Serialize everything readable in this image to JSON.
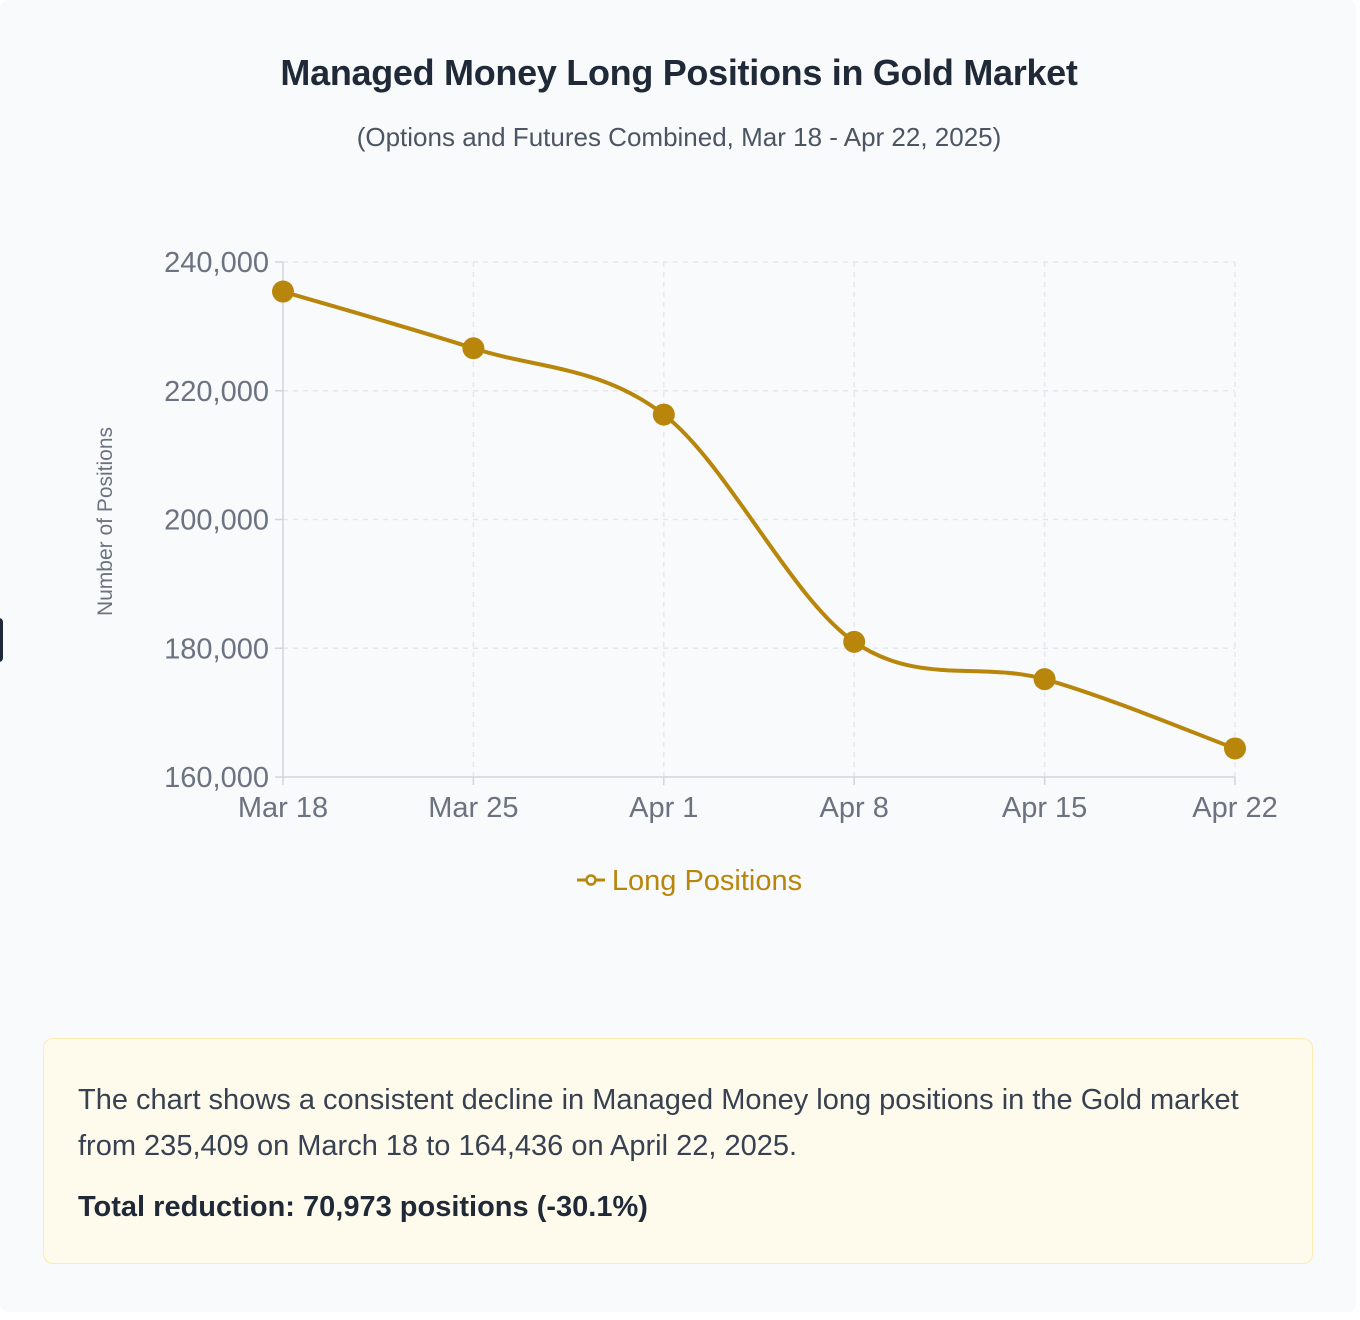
{
  "header": {
    "title": "Managed Money Long Positions in Gold Market",
    "subtitle": "(Options and Futures Combined, Mar 18 - Apr 22, 2025)"
  },
  "chart_data": {
    "type": "line",
    "title": "Managed Money Long Positions in Gold Market",
    "subtitle": "(Options and Futures Combined, Mar 18 - Apr 22, 2025)",
    "xlabel": "",
    "ylabel": "Number of Positions",
    "categories": [
      "Mar 18",
      "Mar 25",
      "Apr 1",
      "Apr 8",
      "Apr 15",
      "Apr 22"
    ],
    "series": [
      {
        "name": "Long Positions",
        "values": [
          235409,
          226600,
          216300,
          181000,
          175200,
          164436
        ],
        "color": "#b8860b"
      }
    ],
    "ylim": [
      160000,
      240000
    ],
    "yticks": [
      160000,
      180000,
      200000,
      220000,
      240000
    ],
    "ytick_labels": [
      "160,000",
      "180,000",
      "200,000",
      "220,000",
      "240,000"
    ],
    "grid": true,
    "legend_position": "bottom",
    "line_style": "smooth"
  },
  "legend": {
    "label": "Long Positions"
  },
  "summary": {
    "text": "The chart shows a consistent decline in Managed Money long positions in the Gold market from 235,409 on March 18 to 164,436 on April 22, 2025.",
    "reduction": "Total reduction: 70,973 positions (-30.1%)"
  },
  "colors": {
    "accent": "#b8860b",
    "grid": "#e5e7eb",
    "axis": "#d1d5db",
    "summary_bg": "#fefbec",
    "summary_border": "#fbecb2"
  }
}
